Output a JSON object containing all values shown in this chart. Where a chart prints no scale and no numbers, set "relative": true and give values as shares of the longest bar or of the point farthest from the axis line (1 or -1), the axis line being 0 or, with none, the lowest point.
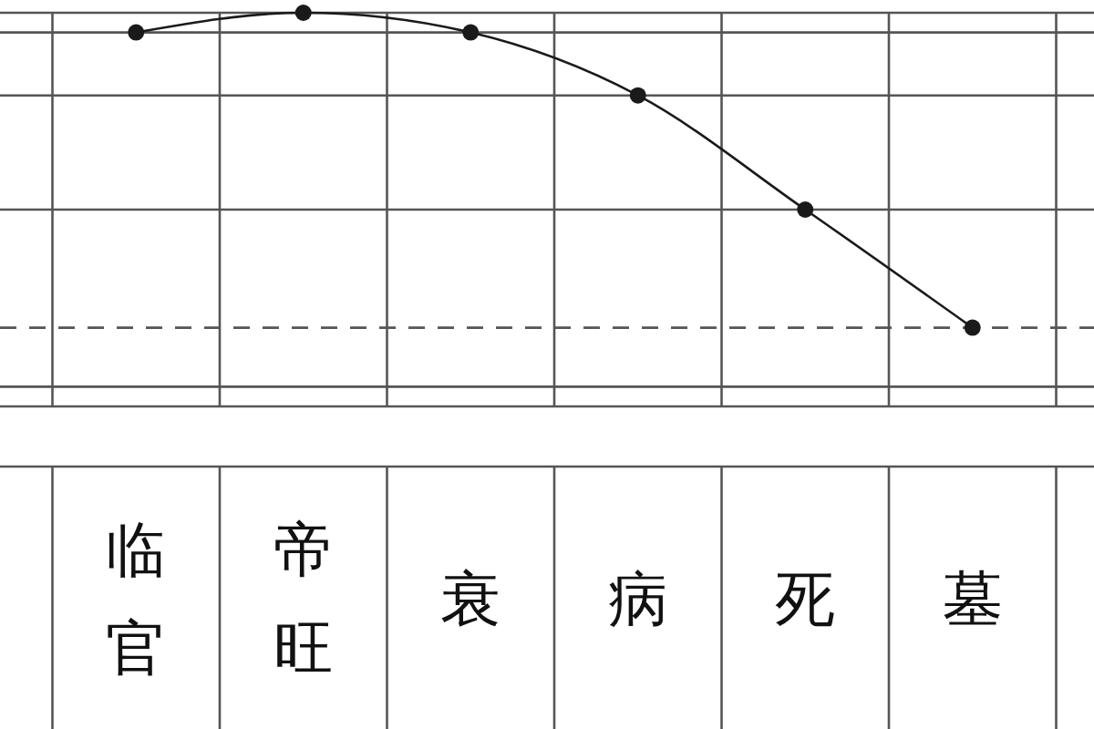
{
  "chart_data": {
    "type": "line",
    "categories": [
      null,
      "临官",
      "帝旺",
      "衰",
      "病",
      "死",
      "墓",
      null
    ],
    "values": [
      null,
      0.95,
      1,
      0.95,
      0.79,
      0.5,
      0.2,
      null
    ],
    "color": "#1a1a1a",
    "relative": true,
    "marker": "circle",
    "grid": "x",
    "ref_lines": [
      {
        "axis": "y",
        "value": 0.95
      },
      {
        "axis": "y",
        "value": 0.79
      },
      {
        "axis": "y",
        "value": 0.5
      },
      {
        "axis": "y",
        "value": 0.2,
        "line_style": "dashed"
      },
      {
        "axis": "y",
        "value": 0.05
      }
    ]
  }
}
